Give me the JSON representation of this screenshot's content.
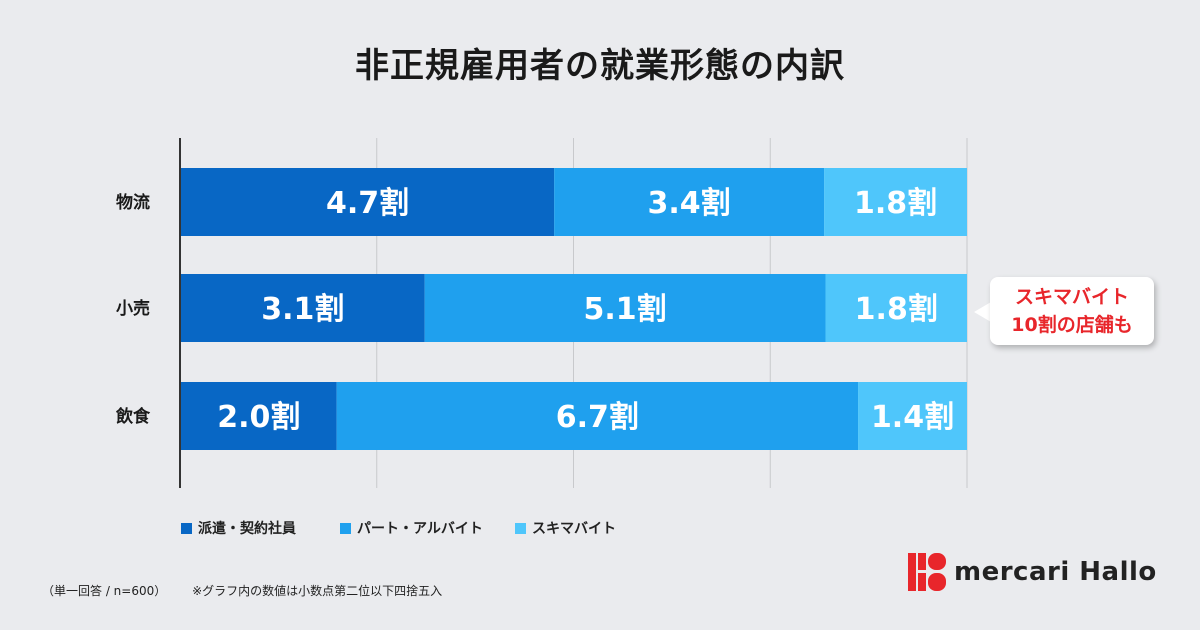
{
  "title": "非正規雇用者の就業形態の内訳",
  "chart_data": {
    "type": "bar",
    "orientation": "horizontal",
    "stacked": true,
    "xlim": [
      0,
      10
    ],
    "grid": true,
    "categories": [
      "物流",
      "小売",
      "飲食"
    ],
    "series": [
      {
        "name": "派遣・契約社員",
        "color": "#0867c5",
        "values": [
          4.7,
          3.1,
          2.0
        ],
        "labels": [
          "4.7割",
          "3.1割",
          "2.0割"
        ]
      },
      {
        "name": "パート・アルバイト",
        "color": "#1fa0ee",
        "values": [
          3.4,
          5.1,
          6.7
        ],
        "labels": [
          "3.4割",
          "5.1割",
          "6.7割"
        ]
      },
      {
        "name": "スキマバイト",
        "color": "#4fc6fb",
        "values": [
          1.8,
          1.8,
          1.4
        ],
        "labels": [
          "1.8割",
          "1.8割",
          "1.4割"
        ]
      }
    ],
    "legend_position": "bottom-left"
  },
  "callout": {
    "line1": "スキマバイト",
    "line2": "10割の店舗も"
  },
  "footnote": {
    "sample": "（単一回答 / n=600）",
    "note": "※グラフ内の数値は小数点第二位以下四捨五入"
  },
  "brand": {
    "name": "mercari Hallo",
    "accent": "#e8262b"
  }
}
